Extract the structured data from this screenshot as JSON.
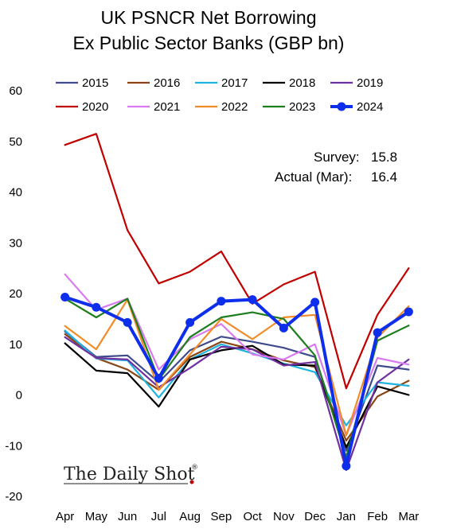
{
  "chart_data": {
    "type": "line",
    "title": "UK PSNCR Net Borrowing",
    "subtitle": "Ex Public Sector Banks (GBP bn)",
    "categories": [
      "Apr",
      "May",
      "Jun",
      "Jul",
      "Aug",
      "Sep",
      "Oct",
      "Nov",
      "Dec",
      "Jan",
      "Feb",
      "Mar"
    ],
    "ylim": [
      -20,
      60
    ],
    "yticks": [
      -20,
      -10,
      0,
      10,
      20,
      30,
      40,
      50,
      60
    ],
    "grid": false,
    "legend_position": "top",
    "series": [
      {
        "name": "2015",
        "color": "#3f4b8c",
        "values": [
          12.5,
          7.5,
          7.8,
          2.5,
          8.8,
          11.5,
          10.5,
          9.3,
          7.5,
          -11.0,
          5.8,
          5.0
        ]
      },
      {
        "name": "2016",
        "color": "#8b4513",
        "values": [
          12.0,
          7.3,
          5.0,
          1.0,
          7.5,
          10.5,
          9.0,
          6.8,
          5.5,
          -9.0,
          -0.3,
          2.8
        ]
      },
      {
        "name": "2017",
        "color": "#1fb4e0",
        "values": [
          12.7,
          7.2,
          6.8,
          -0.5,
          7.0,
          10.0,
          8.2,
          6.2,
          4.5,
          -6.0,
          2.5,
          1.8
        ]
      },
      {
        "name": "2018",
        "color": "#000000",
        "values": [
          10.2,
          4.8,
          4.3,
          -2.3,
          7.0,
          8.8,
          9.7,
          6.0,
          5.8,
          -10.3,
          1.7,
          0.0
        ]
      },
      {
        "name": "2019",
        "color": "#7030a0",
        "values": [
          11.4,
          7.3,
          7.0,
          1.5,
          5.3,
          9.5,
          9.0,
          5.8,
          6.5,
          -14.8,
          2.5,
          7.0
        ]
      },
      {
        "name": "2020",
        "color": "#c00000",
        "values": [
          49.3,
          51.5,
          32.5,
          22.0,
          24.3,
          28.3,
          18.0,
          21.8,
          24.3,
          1.3,
          15.8,
          25.0
        ]
      },
      {
        "name": "2021",
        "color": "#d97bf0",
        "values": [
          23.8,
          16.8,
          19.0,
          5.0,
          11.0,
          14.0,
          8.0,
          7.0,
          10.0,
          -8.0,
          7.3,
          6.0
        ]
      },
      {
        "name": "2022",
        "color": "#f28c28",
        "values": [
          13.6,
          9.0,
          18.8,
          1.0,
          8.0,
          15.0,
          11.0,
          15.3,
          15.8,
          -8.0,
          11.3,
          17.5
        ]
      },
      {
        "name": "2023",
        "color": "#1e7e1e",
        "values": [
          19.0,
          15.3,
          19.0,
          3.0,
          11.4,
          15.3,
          16.3,
          15.0,
          7.8,
          -12.3,
          10.7,
          13.7
        ]
      },
      {
        "name": "2024",
        "color": "#0d2eea",
        "values": [
          19.3,
          17.3,
          14.3,
          3.3,
          14.3,
          18.5,
          18.8,
          13.2,
          18.3,
          -14.0,
          12.3,
          16.4
        ]
      }
    ],
    "annotations": [
      {
        "label": "Survey:",
        "value": "15.8"
      },
      {
        "label": "Actual (Mar):",
        "value": "16.4"
      }
    ]
  },
  "branding": {
    "logo_text": "The Daily Shot",
    "logo_mark": "®",
    "logo_dot_color": "#c00000"
  }
}
